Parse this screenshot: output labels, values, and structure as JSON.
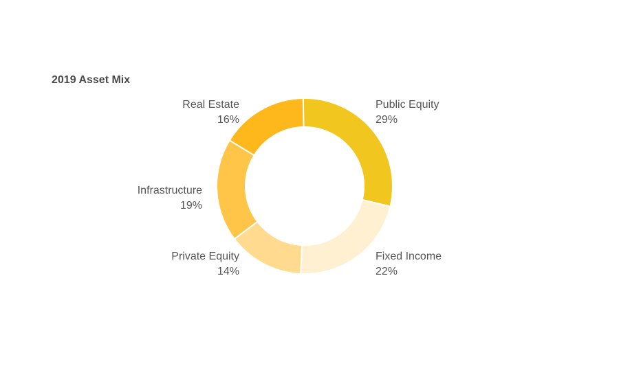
{
  "chart_data": {
    "type": "pie",
    "variant": "donut",
    "title": "2019 Asset Mix",
    "categories": [
      "Public Equity",
      "Fixed Income",
      "Private Equity",
      "Infrastructure",
      "Real Estate"
    ],
    "values": [
      29,
      22,
      14,
      19,
      16
    ],
    "value_labels": [
      "29%",
      "22%",
      "14%",
      "19%",
      "16%"
    ],
    "colors": [
      "#F0C61F",
      "#FFF0D2",
      "#FFDA8F",
      "#FFC549",
      "#FEB81C"
    ],
    "start_angle_deg": -1,
    "direction": "clockwise",
    "legend": "none"
  }
}
